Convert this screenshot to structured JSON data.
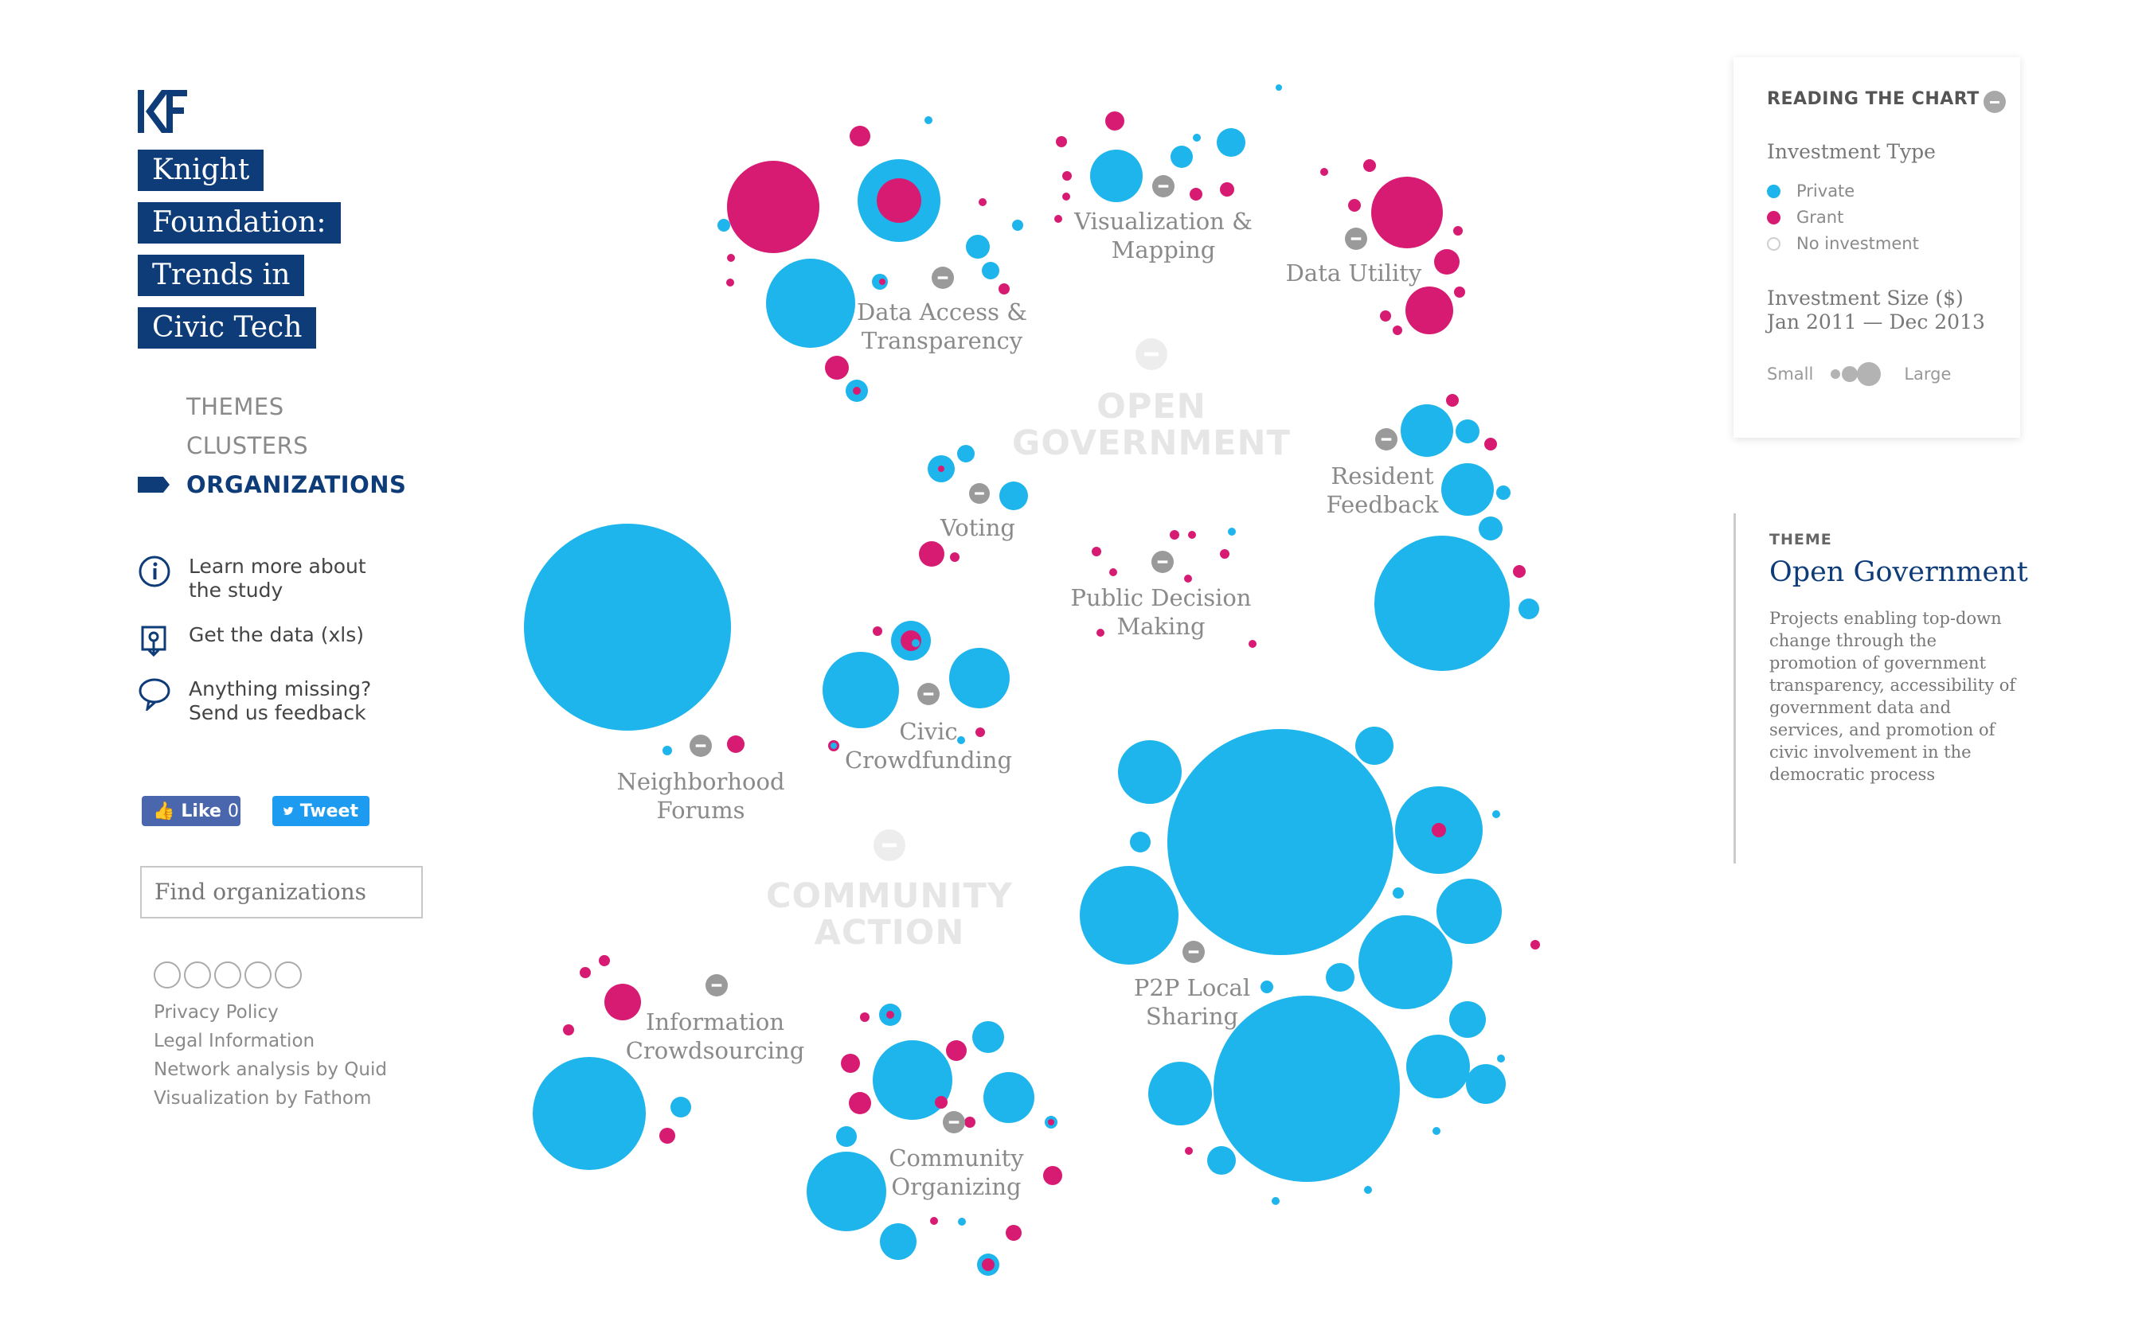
{
  "colors": {
    "private": "#1db5ec",
    "grant": "#d81b72",
    "none": "#cfcfcf",
    "brand": "#0e3c79"
  },
  "sidebar": {
    "title_lines": [
      "Knight",
      "Foundation:",
      "Trends in",
      "Civic Tech"
    ],
    "nav": [
      {
        "label": "THEMES",
        "active": false
      },
      {
        "label": "CLUSTERS",
        "active": false
      },
      {
        "label": "ORGANIZATIONS",
        "active": true
      }
    ],
    "links": [
      {
        "label": "Learn more about the study",
        "icon": "info-icon"
      },
      {
        "label": "Get the data (xls)",
        "icon": "download-icon"
      },
      {
        "label": "Anything missing? Send us feedback",
        "icon": "speech-bubble-icon"
      }
    ],
    "like_label": "Like",
    "like_count": "0",
    "tweet_label": "Tweet",
    "search_placeholder": "Find organizations",
    "footer_links": [
      "Privacy Policy",
      "Legal Information",
      "Network analysis by Quid",
      "Visualization by Fathom"
    ]
  },
  "legend": {
    "heading": "READING THE CHART",
    "investment_type_label": "Investment Type",
    "types": [
      "Private",
      "Grant",
      "No investment"
    ],
    "size_label_1": "Investment Size ($)",
    "size_label_2": "Jan 2011 — Dec 2013",
    "small_label": "Small",
    "large_label": "Large"
  },
  "theme_panel": {
    "kicker": "THEME",
    "title": "Open Government",
    "description": "Projects enabling top-down change through the promotion of government transparency, accessibility of government data and services, and promotion of civic involvement in the democratic process"
  },
  "themes": [
    "OPEN GOVERNMENT",
    "COMMUNITY ACTION"
  ],
  "clusters": [
    "Data Access & Transparency",
    "Visualization & Mapping",
    "Data Utility",
    "Resident Feedback",
    "Voting",
    "Public Decision Making",
    "Civic Crowdfunding",
    "Neighborhood Forums",
    "P2P Local Sharing",
    "Information Crowdsourcing",
    "Community Organizing"
  ]
}
